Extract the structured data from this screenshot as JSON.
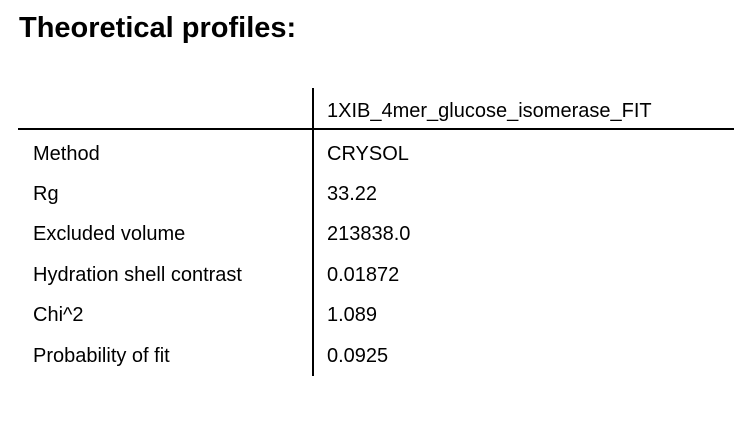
{
  "title": "Theoretical profiles:",
  "table": {
    "header": "1XIB_4mer_glucose_isomerase_FIT",
    "rows": [
      {
        "label": "Method",
        "value": "CRYSOL"
      },
      {
        "label": "Rg",
        "value": "33.22"
      },
      {
        "label": "Excluded volume",
        "value": "213838.0"
      },
      {
        "label": "Hydration shell contrast",
        "value": "0.01872"
      },
      {
        "label": "Chi^2",
        "value": "1.089"
      },
      {
        "label": "Probability of fit",
        "value": "0.0925"
      }
    ]
  }
}
